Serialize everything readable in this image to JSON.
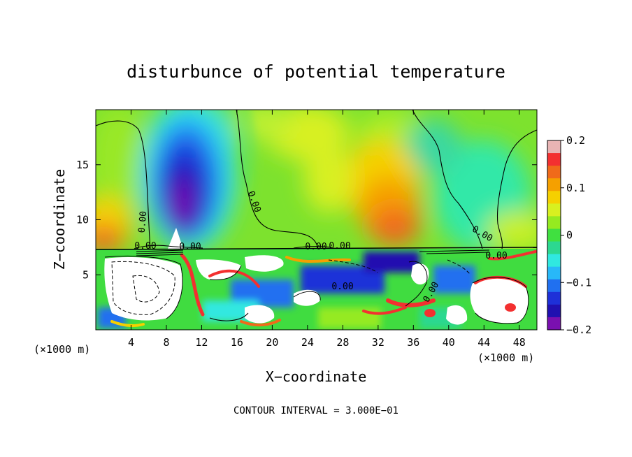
{
  "chart_data": {
    "type": "heatmap",
    "title": "disturbunce of potential temperature",
    "xlabel": "X−coordinate",
    "ylabel": "Z−coordinate",
    "x_unit_left": "(×1000 m)",
    "x_unit_right": "(×1000 m)",
    "xlim": [
      0,
      50
    ],
    "ylim": [
      0,
      20
    ],
    "x_ticks": [
      4,
      8,
      12,
      16,
      20,
      24,
      28,
      32,
      36,
      40,
      44,
      48
    ],
    "x_tick_labels": [
      "4",
      "8",
      "12",
      "16",
      "20",
      "24",
      "28",
      "32",
      "36",
      "40",
      "44",
      "48"
    ],
    "y_ticks": [
      5,
      10,
      15
    ],
    "y_tick_labels": [
      "5",
      "10",
      "15"
    ],
    "colorbar": {
      "range": [
        -0.2,
        0.2
      ],
      "tick_values": [
        0.2,
        0.1,
        0,
        -0.1,
        -0.2
      ],
      "tick_labels": [
        "0.2",
        "0.1",
        "0",
        "−0.1",
        "−0.2"
      ],
      "colors": [
        "#e8b4b4",
        "#f33030",
        "#f06a1a",
        "#f5a000",
        "#f5d000",
        "#d8f020",
        "#95ea20",
        "#40e040",
        "#2cd890",
        "#30e8e0",
        "#28b8f8",
        "#2070f0",
        "#1e30d8",
        "#2010b0",
        "#7a10b0"
      ]
    },
    "contour_labels": [
      "0.00",
      "0.00",
      "0.00",
      "0.00",
      "0.00",
      "0.00",
      "0.00",
      "0.00",
      "0.00",
      "0.00"
    ],
    "contour_interval_text": "CONTOUR INTERVAL = 3.000E−01",
    "features": [
      {
        "kind": "cold anomaly",
        "x": 10,
        "z": 13,
        "value": -0.2
      },
      {
        "kind": "warm anomaly",
        "x": 34,
        "z": 9,
        "value": 0.15
      },
      {
        "kind": "warm anomaly",
        "x": 27,
        "z": 12,
        "value": 0.07
      },
      {
        "kind": "warm boundary layer",
        "x": 1,
        "z": 8.5,
        "value": 0.15
      },
      {
        "kind": "interface",
        "z": 7.3
      }
    ]
  }
}
